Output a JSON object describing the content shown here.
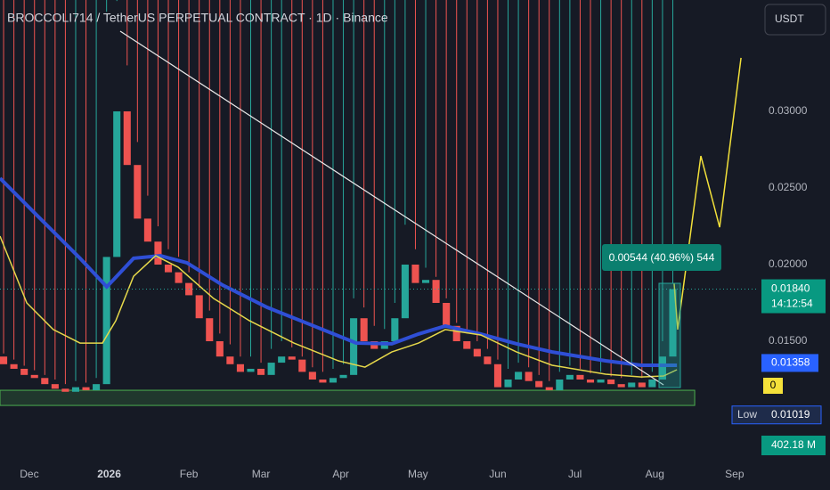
{
  "chart_data": {
    "type": "candlestick",
    "title": "BROCCOLI714 / TetherUS PERPETUAL CONTRACT · 1D · Binance",
    "currency": "USDT",
    "up_color": "#26a69a",
    "down_color": "#ef5350",
    "grid": false,
    "xlim": [
      -11.4,
      282.7
    ],
    "ylim": [
      0.007035,
      0.037267
    ],
    "xticks": [
      {
        "value": 0,
        "label": "Dec"
      },
      {
        "value": 31,
        "label": "2026"
      },
      {
        "value": 62,
        "label": "Feb"
      },
      {
        "value": 90,
        "label": "Mar"
      },
      {
        "value": 121,
        "label": "Apr"
      },
      {
        "value": 151,
        "label": "May"
      },
      {
        "value": 182,
        "label": "Jun"
      },
      {
        "value": 212,
        "label": "Jul"
      },
      {
        "value": 243,
        "label": "Aug"
      },
      {
        "value": 274,
        "label": "Sep"
      }
    ],
    "yticks": [
      {
        "value": 0.015,
        "label": "0.01500"
      },
      {
        "value": 0.02,
        "label": "0.02000"
      },
      {
        "value": 0.025,
        "label": "0.02500"
      },
      {
        "value": 0.03,
        "label": "0.03000"
      }
    ],
    "x": [
      -10,
      -6,
      -2,
      2,
      6,
      10,
      14,
      18,
      22,
      26,
      30,
      34,
      38,
      42,
      46,
      50,
      54,
      58,
      62,
      66,
      70,
      74,
      78,
      82,
      86,
      90,
      94,
      98,
      102,
      106,
      110,
      114,
      118,
      122,
      126,
      130,
      134,
      138,
      142,
      146,
      150,
      154,
      158,
      162,
      166,
      170,
      174,
      178,
      182,
      186,
      190,
      194,
      198,
      202,
      206,
      210,
      214,
      218,
      222,
      226,
      230,
      234,
      238,
      242,
      246,
      250
    ],
    "open": [
      0.014,
      0.0135,
      0.0132,
      0.0128,
      0.0126,
      0.0122,
      0.0119,
      0.0117,
      0.012,
      0.0118,
      0.0122,
      0.0205,
      0.03,
      0.0265,
      0.023,
      0.0215,
      0.02,
      0.0195,
      0.0188,
      0.018,
      0.0165,
      0.015,
      0.014,
      0.0135,
      0.013,
      0.0132,
      0.0128,
      0.0136,
      0.014,
      0.0138,
      0.013,
      0.0125,
      0.0123,
      0.0126,
      0.0128,
      0.0165,
      0.015,
      0.0145,
      0.015,
      0.0165,
      0.02,
      0.0188,
      0.019,
      0.0175,
      0.016,
      0.015,
      0.0145,
      0.014,
      0.0135,
      0.012,
      0.0125,
      0.013,
      0.0124,
      0.012,
      0.0118,
      0.0125,
      0.0128,
      0.0125,
      0.0123,
      0.0125,
      0.0122,
      0.012,
      0.0123,
      0.012,
      0.0125,
      0.014
    ],
    "high": [
      0.0142,
      0.0138,
      0.0134,
      0.0131,
      0.0128,
      0.0125,
      0.0122,
      0.0124,
      0.0123,
      0.0126,
      0.0365,
      0.0372,
      0.033,
      0.028,
      0.0245,
      0.0225,
      0.021,
      0.0205,
      0.0195,
      0.0185,
      0.017,
      0.0155,
      0.0148,
      0.014,
      0.014,
      0.0136,
      0.0145,
      0.015,
      0.0146,
      0.014,
      0.0133,
      0.013,
      0.0132,
      0.0135,
      0.0178,
      0.0172,
      0.016,
      0.0158,
      0.0175,
      0.0226,
      0.021,
      0.0198,
      0.0192,
      0.0178,
      0.0162,
      0.0155,
      0.015,
      0.0145,
      0.0138,
      0.0132,
      0.0136,
      0.0133,
      0.0128,
      0.0124,
      0.013,
      0.0134,
      0.0132,
      0.0129,
      0.013,
      0.0127,
      0.0126,
      0.0128,
      0.0126,
      0.013,
      0.015,
      0.0188
    ],
    "low": {
      "label": "Low",
      "value": 0.01019
    },
    "close": [
      0.0135,
      0.0132,
      0.0128,
      0.0126,
      0.0122,
      0.0119,
      0.0117,
      0.012,
      0.0118,
      0.0122,
      0.0205,
      0.03,
      0.0265,
      0.023,
      0.0215,
      0.02,
      0.0195,
      0.0188,
      0.018,
      0.0165,
      0.015,
      0.014,
      0.0135,
      0.013,
      0.0132,
      0.0128,
      0.0136,
      0.014,
      0.0138,
      0.013,
      0.0125,
      0.0123,
      0.0126,
      0.0128,
      0.0165,
      0.015,
      0.0145,
      0.015,
      0.0165,
      0.02,
      0.0188,
      0.019,
      0.0175,
      0.016,
      0.015,
      0.0145,
      0.014,
      0.0135,
      0.012,
      0.0125,
      0.013,
      0.0124,
      0.012,
      0.0118,
      0.0125,
      0.0128,
      0.0125,
      0.0123,
      0.0125,
      0.0122,
      0.012,
      0.0123,
      0.012,
      0.0125,
      0.014,
      0.0184
    ],
    "series": [
      {
        "color": "#2f4fd6",
        "width": 4,
        "x": [
          -11.4,
          2.4,
          19.7,
          30.1,
          40.5,
          50.9,
          61.2,
          75.1,
          92.4,
          109.7,
          127,
          140.8,
          151.2,
          161.6,
          175.4,
          189.3,
          203.1,
          223.9,
          237.7,
          251.6
        ],
        "values": [
          0.02564,
          0.02331,
          0.02041,
          0.01855,
          0.02041,
          0.02058,
          0.02012,
          0.01866,
          0.01721,
          0.01605,
          0.01488,
          0.01483,
          0.01547,
          0.01599,
          0.01547,
          0.01483,
          0.0143,
          0.01372,
          0.01343,
          0.01343
        ]
      },
      {
        "color": "#e6d84a",
        "width": 1.5,
        "x": [
          -11.4,
          -1,
          9.3,
          19.7,
          28.4,
          33.6,
          40.5,
          49.1,
          57.8,
          71.6,
          85.5,
          102.8,
          120.1,
          130.4,
          140.8,
          151.2,
          161.6,
          175.4,
          189.3,
          203.1,
          223.9,
          237.7,
          246.4,
          251.6
        ],
        "values": [
          0.02186,
          0.0175,
          0.01576,
          0.01488,
          0.01488,
          0.01634,
          0.01924,
          0.02058,
          0.01983,
          0.01779,
          0.01634,
          0.01488,
          0.01372,
          0.01331,
          0.0143,
          0.01488,
          0.01576,
          0.01541,
          0.0143,
          0.01343,
          0.01285,
          0.01267,
          0.01273,
          0.01314
        ]
      },
      {
        "color": "#e8e8e8",
        "width": 1.2,
        "x": [
          35.3,
          246.4
        ],
        "values": [
          0.03523,
          0.01215
        ]
      },
      {
        "color": "#f2e03a",
        "width": 1.5,
        "x": [
          250.5,
          251.9,
          260.9,
          268.2,
          276.5
        ],
        "values": [
          0.01878,
          0.01576,
          0.02709,
          0.02244,
          0.03349
        ]
      }
    ],
    "zone": {
      "x": [
        -11.4,
        258.5
      ],
      "y": [
        0.01081,
        0.0118
      ],
      "color": "#4caf50"
    },
    "annotation": "0.00544 (40.96%) 544",
    "last_price": {
      "value": 0.0184,
      "label": "0.01840"
    },
    "countdown": "14:12:54",
    "ma_price": 0.01358,
    "ma2_price": 0,
    "volume_label": "402.18 M"
  }
}
